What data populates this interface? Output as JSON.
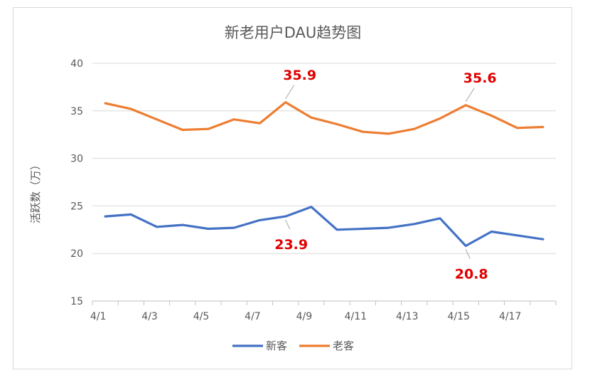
{
  "chart_data": {
    "type": "line",
    "title": "新老用户DAU趋势图",
    "ylabel": "活跃数（万）",
    "xlabel": "",
    "ylim": [
      15,
      40
    ],
    "yticks": [
      15,
      20,
      25,
      30,
      35,
      40
    ],
    "x": [
      "4/1",
      "4/2",
      "4/3",
      "4/4",
      "4/5",
      "4/6",
      "4/7",
      "4/8",
      "4/9",
      "4/10",
      "4/11",
      "4/12",
      "4/13",
      "4/14",
      "4/15",
      "4/16",
      "4/17",
      "4/18"
    ],
    "xtick_labels": [
      "4/1",
      "",
      "4/3",
      "",
      "4/5",
      "",
      "4/7",
      "",
      "4/9",
      "",
      "4/11",
      "",
      "4/13",
      "",
      "4/15",
      "",
      "4/17",
      ""
    ],
    "series": [
      {
        "name": "新客",
        "color": "#4472c4",
        "values": [
          23.9,
          24.1,
          22.8,
          23.0,
          22.6,
          22.7,
          23.5,
          23.9,
          24.9,
          22.5,
          22.6,
          22.7,
          23.1,
          23.7,
          20.8,
          22.3,
          21.9,
          21.5
        ]
      },
      {
        "name": "老客",
        "color": "#ed7d31",
        "values": [
          35.8,
          35.2,
          34.1,
          33.0,
          33.1,
          34.1,
          33.7,
          35.9,
          34.3,
          33.6,
          32.8,
          32.6,
          33.1,
          34.2,
          35.6,
          34.5,
          33.2,
          33.3
        ]
      }
    ],
    "annotations": [
      {
        "series": 1,
        "index": 7,
        "text": "35.9",
        "position": "above"
      },
      {
        "series": 1,
        "index": 14,
        "text": "35.6",
        "position": "above"
      },
      {
        "series": 0,
        "index": 7,
        "text": "23.9",
        "position": "below"
      },
      {
        "series": 0,
        "index": 14,
        "text": "20.8",
        "position": "below"
      }
    ],
    "annotation_color": "#e00000",
    "grid": true,
    "legend_position": "bottom"
  }
}
